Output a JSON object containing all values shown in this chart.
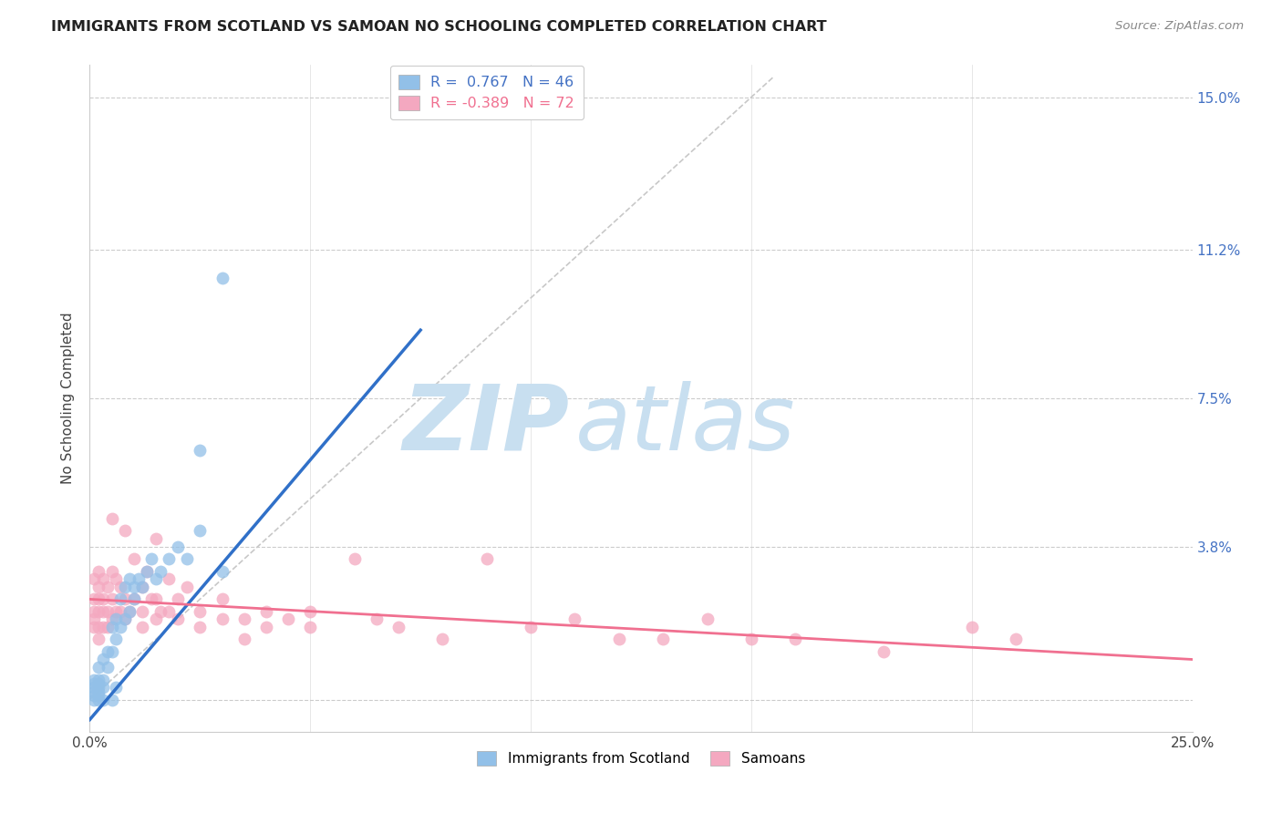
{
  "title": "IMMIGRANTS FROM SCOTLAND VS SAMOAN NO SCHOOLING COMPLETED CORRELATION CHART",
  "source": "Source: ZipAtlas.com",
  "ylabel": "No Schooling Completed",
  "legend_label_blue": "Immigrants from Scotland",
  "legend_label_pink": "Samoans",
  "legend_r_blue": "R =  0.767",
  "legend_n_blue": "N = 46",
  "legend_r_pink": "R = -0.389",
  "legend_n_pink": "N = 72",
  "blue_color": "#92c0e8",
  "pink_color": "#f4a8c0",
  "line_blue_color": "#3070c8",
  "line_pink_color": "#f07090",
  "diagonal_color": "#c8c8c8",
  "watermark_zip_color": "#c8dff0",
  "watermark_atlas_color": "#c8dff0",
  "background_color": "#ffffff",
  "x_min": 0.0,
  "x_max": 0.25,
  "y_min": -0.008,
  "y_max": 0.158,
  "y_ticks": [
    0.0,
    0.038,
    0.075,
    0.112,
    0.15
  ],
  "y_tick_labels_right": [
    "",
    "3.8%",
    "7.5%",
    "11.2%",
    "15.0%"
  ],
  "x_ticks_positions": [
    0.0,
    0.25
  ],
  "x_tick_labels": [
    "0.0%",
    "25.0%"
  ],
  "x_grid_ticks": [
    0.0,
    0.05,
    0.1,
    0.15,
    0.2,
    0.25
  ],
  "blue_line_x": [
    0.0,
    0.075
  ],
  "blue_line_y": [
    -0.005,
    0.092
  ],
  "pink_line_x": [
    0.0,
    0.25
  ],
  "pink_line_y": [
    0.025,
    0.01
  ],
  "diag_line_x": [
    0.0,
    0.155
  ],
  "diag_line_y": [
    0.0,
    0.155
  ],
  "blue_scatter": [
    [
      0.001,
      0.0
    ],
    [
      0.001,
      0.001
    ],
    [
      0.002,
      0.0
    ],
    [
      0.002,
      0.001
    ],
    [
      0.001,
      0.002
    ],
    [
      0.002,
      0.002
    ],
    [
      0.001,
      0.003
    ],
    [
      0.002,
      0.003
    ],
    [
      0.001,
      0.004
    ],
    [
      0.002,
      0.004
    ],
    [
      0.001,
      0.005
    ],
    [
      0.002,
      0.005
    ],
    [
      0.003,
      0.005
    ],
    [
      0.003,
      0.003
    ],
    [
      0.002,
      0.008
    ],
    [
      0.003,
      0.01
    ],
    [
      0.004,
      0.008
    ],
    [
      0.004,
      0.012
    ],
    [
      0.005,
      0.012
    ],
    [
      0.005,
      0.018
    ],
    [
      0.006,
      0.015
    ],
    [
      0.006,
      0.02
    ],
    [
      0.007,
      0.018
    ],
    [
      0.007,
      0.025
    ],
    [
      0.008,
      0.02
    ],
    [
      0.008,
      0.028
    ],
    [
      0.009,
      0.022
    ],
    [
      0.009,
      0.03
    ],
    [
      0.01,
      0.025
    ],
    [
      0.01,
      0.028
    ],
    [
      0.011,
      0.03
    ],
    [
      0.012,
      0.028
    ],
    [
      0.013,
      0.032
    ],
    [
      0.014,
      0.035
    ],
    [
      0.015,
      0.03
    ],
    [
      0.016,
      0.032
    ],
    [
      0.018,
      0.035
    ],
    [
      0.02,
      0.038
    ],
    [
      0.022,
      0.035
    ],
    [
      0.025,
      0.042
    ],
    [
      0.003,
      0.0
    ],
    [
      0.005,
      0.0
    ],
    [
      0.006,
      0.003
    ],
    [
      0.03,
      0.032
    ],
    [
      0.025,
      0.062
    ],
    [
      0.03,
      0.105
    ]
  ],
  "pink_scatter": [
    [
      0.001,
      0.025
    ],
    [
      0.001,
      0.022
    ],
    [
      0.001,
      0.02
    ],
    [
      0.001,
      0.018
    ],
    [
      0.002,
      0.025
    ],
    [
      0.002,
      0.022
    ],
    [
      0.002,
      0.018
    ],
    [
      0.002,
      0.015
    ],
    [
      0.001,
      0.03
    ],
    [
      0.002,
      0.028
    ],
    [
      0.002,
      0.032
    ],
    [
      0.003,
      0.03
    ],
    [
      0.003,
      0.025
    ],
    [
      0.003,
      0.022
    ],
    [
      0.003,
      0.018
    ],
    [
      0.004,
      0.028
    ],
    [
      0.004,
      0.022
    ],
    [
      0.004,
      0.018
    ],
    [
      0.005,
      0.045
    ],
    [
      0.005,
      0.032
    ],
    [
      0.005,
      0.025
    ],
    [
      0.005,
      0.02
    ],
    [
      0.006,
      0.03
    ],
    [
      0.006,
      0.022
    ],
    [
      0.007,
      0.028
    ],
    [
      0.007,
      0.022
    ],
    [
      0.008,
      0.042
    ],
    [
      0.008,
      0.025
    ],
    [
      0.008,
      0.02
    ],
    [
      0.009,
      0.022
    ],
    [
      0.01,
      0.035
    ],
    [
      0.01,
      0.025
    ],
    [
      0.012,
      0.028
    ],
    [
      0.012,
      0.022
    ],
    [
      0.012,
      0.018
    ],
    [
      0.013,
      0.032
    ],
    [
      0.014,
      0.025
    ],
    [
      0.015,
      0.04
    ],
    [
      0.015,
      0.025
    ],
    [
      0.015,
      0.02
    ],
    [
      0.016,
      0.022
    ],
    [
      0.018,
      0.03
    ],
    [
      0.018,
      0.022
    ],
    [
      0.02,
      0.025
    ],
    [
      0.02,
      0.02
    ],
    [
      0.022,
      0.028
    ],
    [
      0.025,
      0.022
    ],
    [
      0.025,
      0.018
    ],
    [
      0.03,
      0.025
    ],
    [
      0.03,
      0.02
    ],
    [
      0.035,
      0.02
    ],
    [
      0.035,
      0.015
    ],
    [
      0.04,
      0.022
    ],
    [
      0.04,
      0.018
    ],
    [
      0.045,
      0.02
    ],
    [
      0.05,
      0.022
    ],
    [
      0.05,
      0.018
    ],
    [
      0.06,
      0.035
    ],
    [
      0.065,
      0.02
    ],
    [
      0.07,
      0.018
    ],
    [
      0.08,
      0.015
    ],
    [
      0.09,
      0.035
    ],
    [
      0.1,
      0.018
    ],
    [
      0.11,
      0.02
    ],
    [
      0.12,
      0.015
    ],
    [
      0.13,
      0.015
    ],
    [
      0.14,
      0.02
    ],
    [
      0.15,
      0.015
    ],
    [
      0.16,
      0.015
    ],
    [
      0.18,
      0.012
    ],
    [
      0.2,
      0.018
    ],
    [
      0.21,
      0.015
    ]
  ]
}
